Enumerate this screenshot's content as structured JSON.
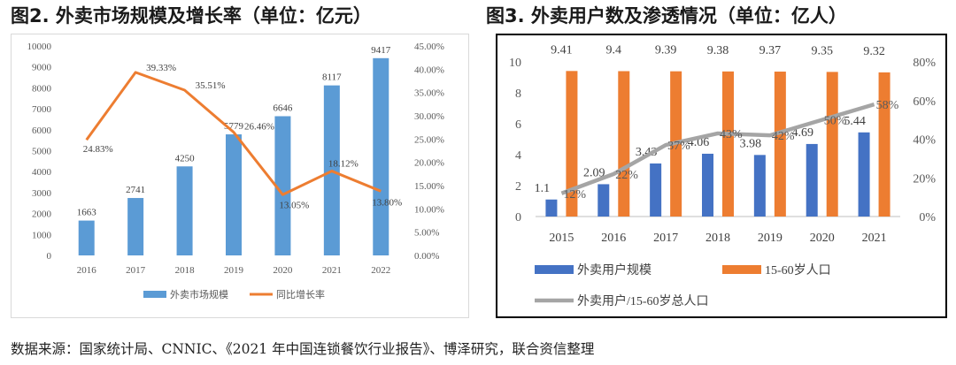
{
  "figure1": {
    "title": "图2. 外卖市场规模及增长率（单位：亿元）"
  },
  "figure2": {
    "title": "图3. 外卖用户数及渗透情况（单位：亿人）"
  },
  "source": "数据来源：国家统计局、CNNIC、《2021 年中国连锁餐饮行业报告》、博泽研究，联合资信整理",
  "colors": {
    "bar_blue_light": "#5b9bd5",
    "line_orange": "#ed7d31",
    "bar_blue_dark": "#4472c4",
    "bar_orange": "#ed7d31",
    "line_gray": "#a5a5a5"
  },
  "chart_data": [
    {
      "type": "bar",
      "categories": [
        "2016",
        "2017",
        "2018",
        "2019",
        "2020",
        "2021",
        "2022"
      ],
      "series": [
        {
          "name": "外卖市场规模",
          "kind": "bar",
          "axis": "left",
          "values": [
            1663,
            2741,
            4250,
            5779,
            6646,
            8117,
            9417
          ],
          "labels": [
            "1663",
            "2741",
            "4250",
            "5779",
            "6646",
            "8117",
            "9417"
          ]
        },
        {
          "name": "同比增长率",
          "kind": "line",
          "axis": "right",
          "values": [
            24.83,
            39.33,
            35.51,
            26.46,
            13.05,
            18.12,
            13.8
          ],
          "labels": [
            "24.83%",
            "39.33%",
            "35.51%",
            "26.46%",
            "13.05%",
            "18.12%",
            "13.80%"
          ]
        }
      ],
      "y_left": {
        "min": 0,
        "max": 10000,
        "ticks": [
          "0",
          "1000",
          "2000",
          "3000",
          "4000",
          "5000",
          "6000",
          "7000",
          "8000",
          "9000",
          "10000"
        ]
      },
      "y_right": {
        "min": 0,
        "max": 45,
        "ticks": [
          "0.00%",
          "5.00%",
          "10.00%",
          "15.00%",
          "20.00%",
          "25.00%",
          "30.00%",
          "35.00%",
          "40.00%",
          "45.00%"
        ]
      },
      "grid": false,
      "legend": "bottom"
    },
    {
      "type": "bar",
      "categories": [
        "2015",
        "2016",
        "2017",
        "2018",
        "2019",
        "2020",
        "2021"
      ],
      "series": [
        {
          "name": "外卖用户规模",
          "kind": "bar",
          "axis": "left",
          "values": [
            1.1,
            2.09,
            3.43,
            4.06,
            3.98,
            4.69,
            5.44
          ],
          "labels": [
            "1.1",
            "2.09",
            "3.43",
            "4.06",
            "3.98",
            "4.69",
            "5.44"
          ]
        },
        {
          "name": "15-60岁人口",
          "kind": "bar",
          "axis": "left",
          "values": [
            9.41,
            9.4,
            9.39,
            9.38,
            9.37,
            9.35,
            9.32
          ],
          "labels": [
            "9.41",
            "9.4",
            "9.39",
            "9.38",
            "9.37",
            "9.35",
            "9.32"
          ]
        },
        {
          "name": "外卖用户/15-60岁总人口",
          "kind": "line",
          "axis": "right",
          "values": [
            12,
            22,
            37,
            43,
            42,
            50,
            58
          ],
          "labels": [
            "12%",
            "22%",
            "37%",
            "43%",
            "42%",
            "50%",
            "58%"
          ]
        }
      ],
      "y_left": {
        "min": 0,
        "max": 10,
        "ticks": [
          "0",
          "2",
          "4",
          "6",
          "8",
          "10"
        ]
      },
      "y_right": {
        "min": 0,
        "max": 80,
        "ticks": [
          "0%",
          "20%",
          "40%",
          "60%",
          "80%"
        ]
      },
      "grid": false,
      "legend": "bottom"
    }
  ]
}
